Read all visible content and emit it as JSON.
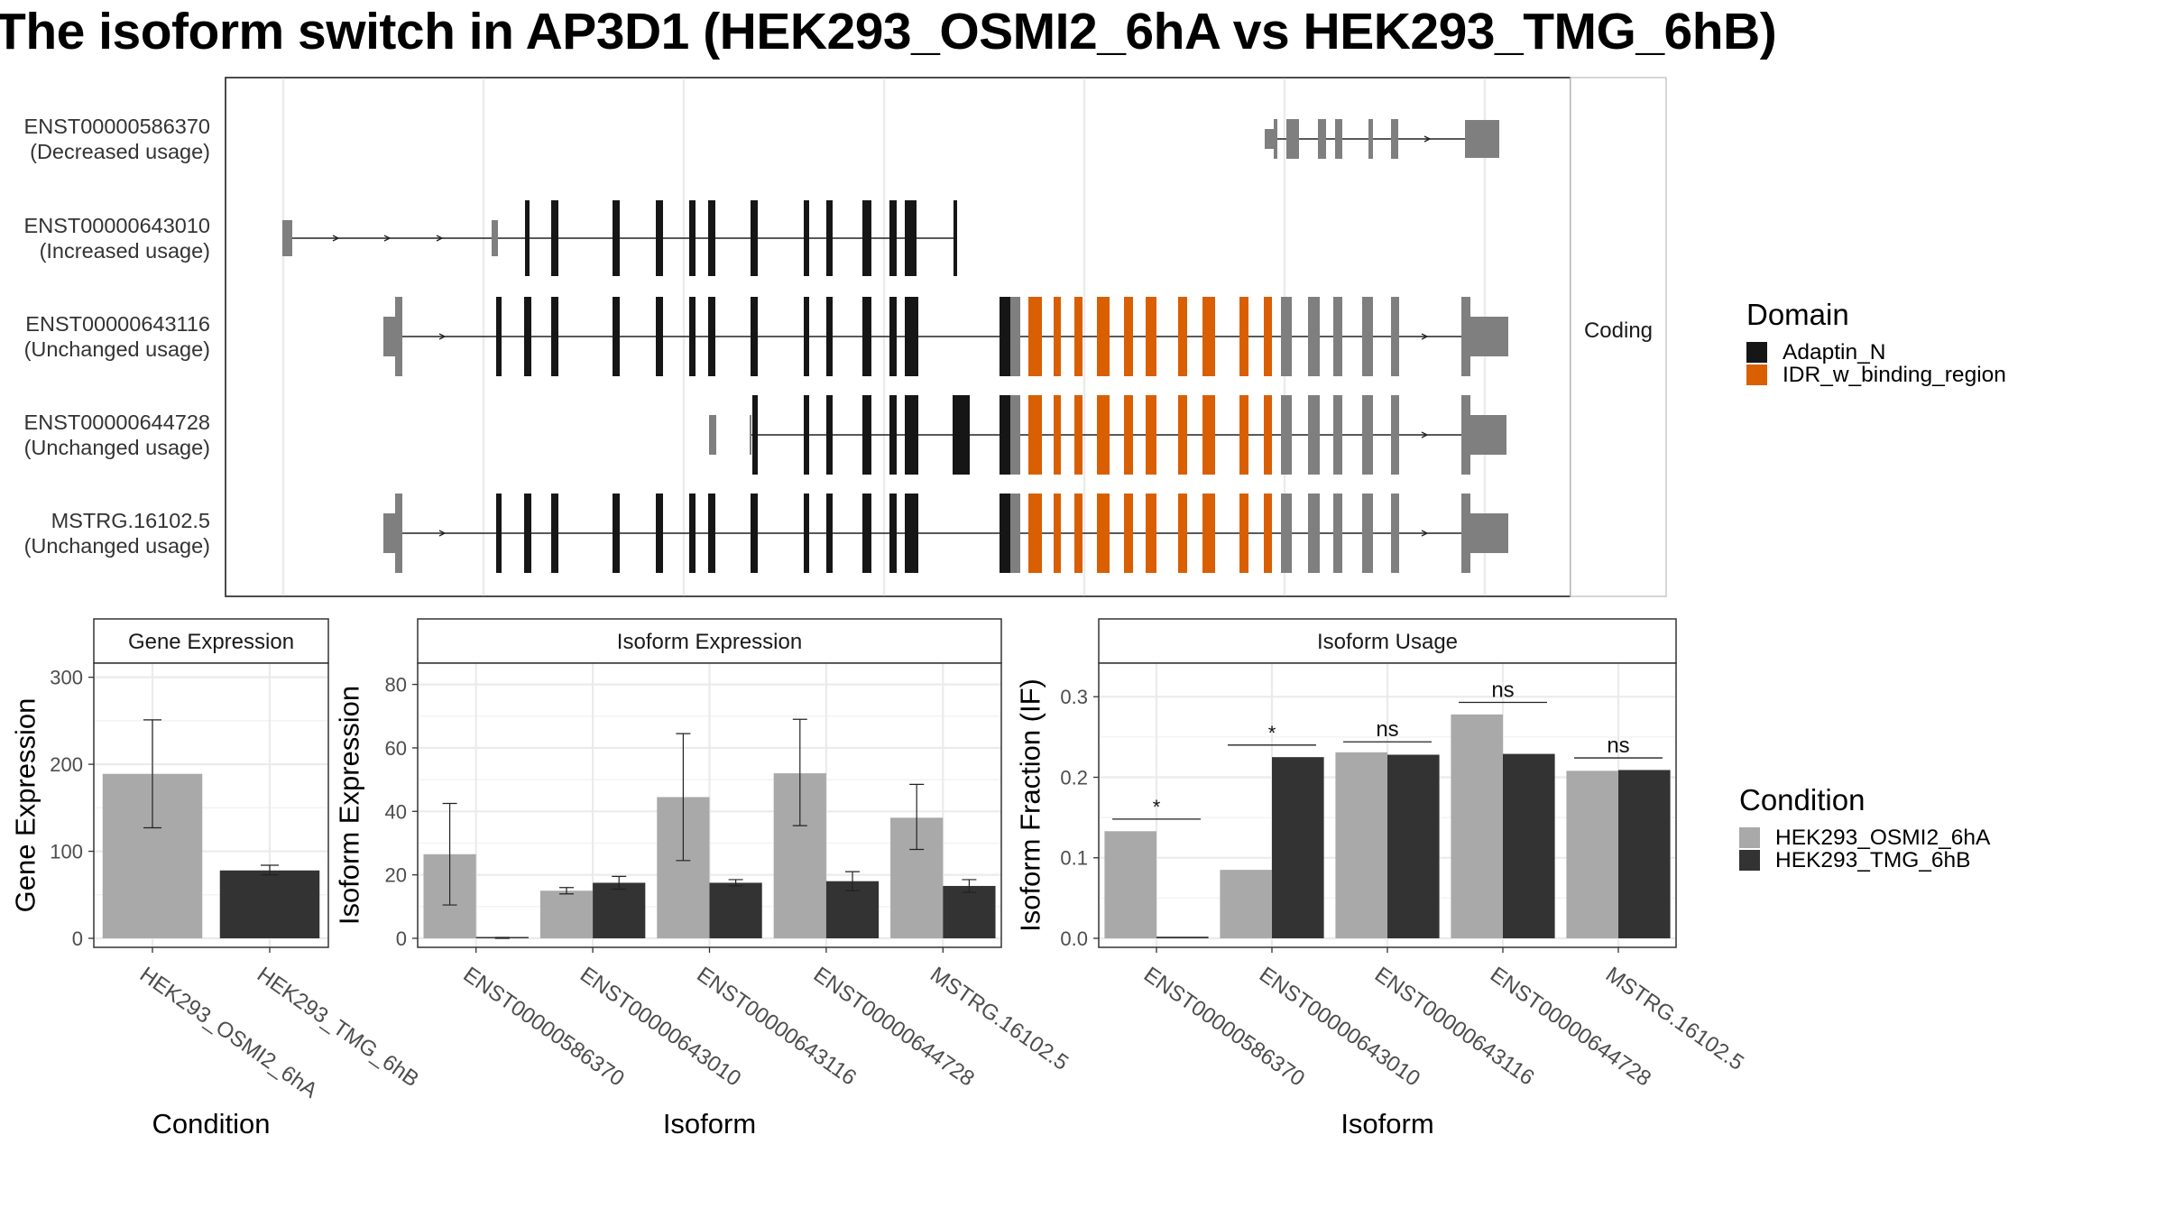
{
  "title": "The isoform switch in AP3D1 (HEK293_OSMI2_6hA vs HEK293_TMG_6hB)",
  "structure_panel": {
    "strip_label": "Coding",
    "transcripts": [
      {
        "id": "ENST00000586370",
        "usage": "(Decreased usage)"
      },
      {
        "id": "ENST00000643010",
        "usage": "(Increased usage)"
      },
      {
        "id": "ENST00000643116",
        "usage": "(Unchanged usage)"
      },
      {
        "id": "ENST00000644728",
        "usage": "(Unchanged usage)"
      },
      {
        "id": "MSTRG.16102.5",
        "usage": "(Unchanged usage)"
      }
    ]
  },
  "legend_domain": {
    "title": "Domain",
    "items": [
      {
        "label": "Adaptin_N",
        "color": "#161616"
      },
      {
        "label": "IDR_w_binding_region",
        "color": "#D95F02"
      }
    ]
  },
  "legend_condition": {
    "title": "Condition",
    "items": [
      {
        "label": "HEK293_OSMI2_6hA",
        "color": "#A9A9A9"
      },
      {
        "label": "HEK293_TMG_6hB",
        "color": "#333333"
      }
    ]
  },
  "colors": {
    "noncoding_exon": "#7F7F7F",
    "adaptin": "#161616",
    "idr": "#D95F02",
    "grid": "#EBEBEB",
    "panel_border": "#333333"
  },
  "chart_data": [
    {
      "type": "bar",
      "strip": "Gene Expression",
      "xlabel": "Condition",
      "ylabel": "Gene Expression",
      "ylim": [
        0,
        310
      ],
      "yticks": [
        0,
        100,
        200,
        300
      ],
      "categories": [
        "HEK293_OSMI2_6hA",
        "HEK293_TMG_6hB"
      ],
      "values": [
        189,
        78
      ],
      "error_low": [
        127,
        73
      ],
      "error_high": [
        251,
        84
      ],
      "bar_colors": [
        "#A9A9A9",
        "#333333"
      ]
    },
    {
      "type": "bar",
      "strip": "Isoform Expression",
      "xlabel": "Isoform",
      "ylabel": "Isoform Expression",
      "ylim": [
        0,
        85
      ],
      "yticks": [
        0,
        20,
        40,
        60,
        80
      ],
      "categories": [
        "ENST00000586370",
        "ENST00000643010",
        "ENST00000643116",
        "ENST00000644728",
        "MSTRG.16102.5"
      ],
      "series": [
        {
          "name": "HEK293_OSMI2_6hA",
          "color": "#A9A9A9",
          "values": [
            26.5,
            15.0,
            44.5,
            52.0,
            38.0
          ],
          "error_low": [
            10.5,
            14.0,
            24.5,
            35.5,
            28.0
          ],
          "error_high": [
            42.5,
            16.0,
            64.5,
            69.0,
            48.5
          ]
        },
        {
          "name": "HEK293_TMG_6hB",
          "color": "#333333",
          "values": [
            0.0,
            17.5,
            17.5,
            18.0,
            16.5
          ],
          "error_low": [
            0.0,
            15.5,
            16.5,
            15.0,
            14.5
          ],
          "error_high": [
            0.3,
            19.5,
            18.5,
            21.0,
            18.5
          ]
        }
      ]
    },
    {
      "type": "bar",
      "strip": "Isoform Usage",
      "xlabel": "Isoform",
      "ylabel": "Isoform Fraction (IF)",
      "ylim": [
        0,
        0.335
      ],
      "yticks": [
        0.0,
        0.1,
        0.2,
        0.3
      ],
      "ytick_labels": [
        "0.0",
        "0.1",
        "0.2",
        "0.3"
      ],
      "categories": [
        "ENST00000586370",
        "ENST00000643010",
        "ENST00000643116",
        "ENST00000644728",
        "MSTRG.16102.5"
      ],
      "series": [
        {
          "name": "HEK293_OSMI2_6hA",
          "color": "#A9A9A9",
          "values": [
            0.133,
            0.085,
            0.231,
            0.278,
            0.208
          ]
        },
        {
          "name": "HEK293_TMG_6hB",
          "color": "#333333",
          "values": [
            0.002,
            0.225,
            0.228,
            0.229,
            0.209
          ]
        }
      ],
      "significance": [
        "*",
        "*",
        "ns",
        "ns",
        "ns"
      ],
      "significance_y": [
        0.148,
        0.24,
        0.244,
        0.293,
        0.224
      ]
    }
  ]
}
